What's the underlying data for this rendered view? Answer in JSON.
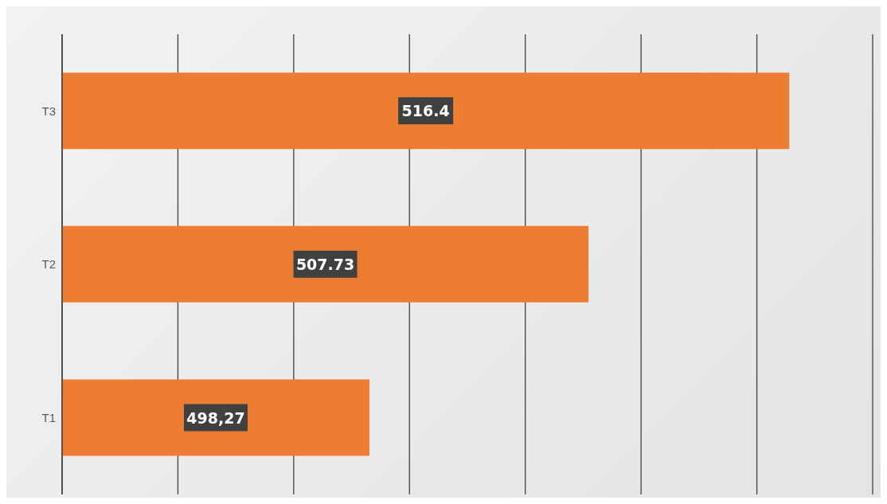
{
  "chart_data": {
    "type": "bar",
    "orientation": "horizontal",
    "categories": [
      "T3",
      "T2",
      "T1"
    ],
    "values": [
      516.4,
      507.73,
      498.27
    ],
    "value_labels": [
      "516.4",
      "507.73",
      "498,27"
    ],
    "color": "#ed7d31",
    "xlim": [
      485,
      520
    ],
    "xticks": [
      {
        "value": 485,
        "label": null
      },
      {
        "value": 490,
        "label": null
      },
      {
        "value": 495,
        "label": null
      },
      {
        "value": 500,
        "label": null
      },
      {
        "value": 505,
        "label": null
      },
      {
        "value": 510,
        "label": null
      },
      {
        "value": 515,
        "label": null
      },
      {
        "value": 520,
        "label": null
      }
    ],
    "tick_labels": "y",
    "grid": "x"
  }
}
